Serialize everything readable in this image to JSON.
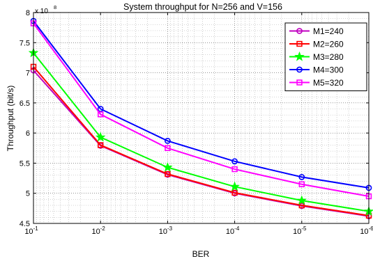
{
  "chart_data": {
    "type": "line",
    "title": "System throughput for N=256 and V=156",
    "xlabel": "BER",
    "ylabel": "Throughput (bit/s)",
    "y_multiplier_label": "x 10",
    "y_multiplier_exponent": "8",
    "x_scale": "log",
    "x_reversed": true,
    "xlim": [
      0.1,
      1e-06
    ],
    "ylim": [
      4.5,
      8
    ],
    "x": [
      0.1,
      0.01,
      0.001,
      0.0001,
      1e-05,
      1e-06
    ],
    "x_ticks": [
      {
        "base": "10",
        "exp": "-1"
      },
      {
        "base": "10",
        "exp": "-2"
      },
      {
        "base": "10",
        "exp": "-3"
      },
      {
        "base": "10",
        "exp": "-4"
      },
      {
        "base": "10",
        "exp": "-5"
      },
      {
        "base": "10",
        "exp": "-6"
      }
    ],
    "y_ticks": [
      "4.5",
      "5",
      "5.5",
      "6",
      "6.5",
      "7",
      "7.5",
      "8"
    ],
    "y_tick_values": [
      4.5,
      5,
      5.5,
      6,
      6.5,
      7,
      7.5,
      8
    ],
    "grid": "dotted, major and minor",
    "legend_position": "top-right",
    "series": [
      {
        "name": "M1=240",
        "color": "#c000c0",
        "marker": "circle",
        "values": [
          7.04,
          5.79,
          5.31,
          5.0,
          4.79,
          4.62
        ]
      },
      {
        "name": "M2=260",
        "color": "#ff0000",
        "marker": "square",
        "values": [
          7.1,
          5.8,
          5.32,
          5.01,
          4.8,
          4.63
        ]
      },
      {
        "name": "M3=280",
        "color": "#00ff00",
        "marker": "star",
        "values": [
          7.33,
          5.93,
          5.43,
          5.11,
          4.88,
          4.7
        ]
      },
      {
        "name": "M4=300",
        "color": "#0000ff",
        "marker": "circle",
        "values": [
          7.86,
          6.4,
          5.87,
          5.53,
          5.27,
          5.09
        ]
      },
      {
        "name": "M5=320",
        "color": "#ff00ff",
        "marker": "square",
        "values": [
          7.82,
          6.31,
          5.75,
          5.4,
          5.15,
          4.95
        ]
      }
    ]
  }
}
